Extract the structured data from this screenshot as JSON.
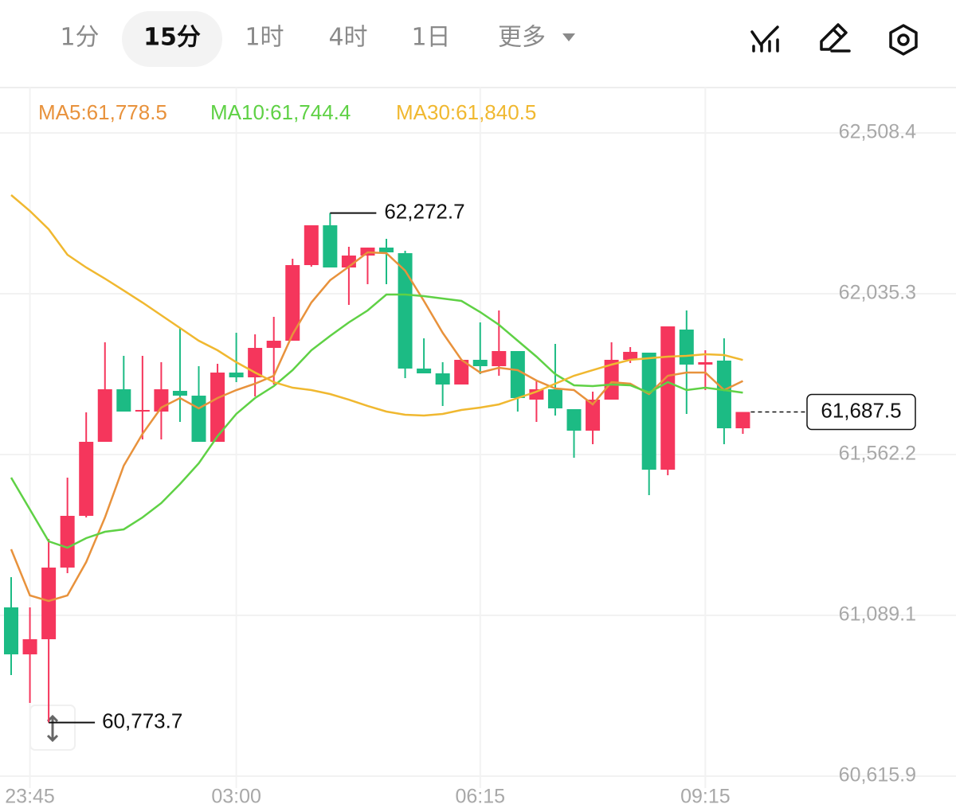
{
  "toolbar": {
    "tabs": [
      "1分",
      "15分",
      "1时",
      "4时",
      "1日",
      "更多"
    ],
    "active": 1
  },
  "chart_data": {
    "type": "candlestick",
    "categories": [
      null,
      "23:45",
      null,
      null,
      null,
      null,
      null,
      null,
      null,
      null,
      null,
      null,
      "03:00",
      null,
      null,
      null,
      null,
      null,
      null,
      null,
      null,
      null,
      null,
      null,
      null,
      "06:15",
      null,
      null,
      null,
      null,
      null,
      null,
      null,
      null,
      null,
      null,
      null,
      "09:15",
      null,
      null
    ],
    "open": [
      61112.6,
      60974.4,
      61018.9,
      61229.7,
      61381.9,
      61599.7,
      61754.3,
      61688.7,
      61688.7,
      61749.6,
      61735.5,
      61599.7,
      61803.4,
      61789.4,
      61876.0,
      61897.1,
      62119.6,
      62236.7,
      62112.6,
      62147.7,
      62171.1,
      62154.7,
      61815.2,
      61801.1,
      61768.3,
      61840.9,
      61822.2,
      61866.7,
      61723.8,
      61754.3,
      61695.7,
      61632.5,
      61723.8,
      61840.9,
      61862.0,
      61517.7,
      61929.9,
      61826.9,
      61838.6,
      61639.5
    ],
    "high": [
      61201.5,
      61112.6,
      61314.0,
      61494.3,
      61686.3,
      61892.4,
      61852.6,
      61852.6,
      61833.9,
      61934.6,
      61822.2,
      61829.2,
      61920.5,
      61915.9,
      61967.4,
      62138.3,
      62236.7,
      62272.7,
      62173.5,
      62171.1,
      62196.9,
      62161.8,
      61904.1,
      61833.9,
      61840.9,
      61951.0,
      61986.1,
      61866.7,
      61780.0,
      61887.8,
      61695.7,
      61747.2,
      61892.4,
      61878.4,
      61862.0,
      61939.3,
      61986.1,
      61869.0,
      61904.1,
      61687.5
    ],
    "low": [
      60913.5,
      60831.5,
      60773.7,
      61213.3,
      61377.2,
      61599.7,
      61688.7,
      61606.7,
      61606.7,
      61658.2,
      61599.7,
      61599.7,
      61775.3,
      61733.2,
      61768.3,
      61897.1,
      62114.9,
      62112.6,
      62002.5,
      62063.4,
      62063.4,
      61787.0,
      61801.1,
      61705.1,
      61768.3,
      61798.8,
      61794.1,
      61688.7,
      61658.2,
      61677.0,
      61552.8,
      61592.7,
      61723.8,
      61831.5,
      61442.8,
      61501.3,
      61681.7,
      61751.9,
      61592.7,
      61623.1
    ],
    "close": [
      60974.4,
      61018.9,
      61229.7,
      61381.9,
      61599.7,
      61754.3,
      61688.7,
      61693.4,
      61754.3,
      61735.5,
      61599.7,
      61803.4,
      61789.4,
      61876.0,
      61897.1,
      62119.6,
      62236.7,
      62112.6,
      62147.7,
      62171.1,
      62157.1,
      61815.2,
      61801.1,
      61768.3,
      61840.9,
      61822.2,
      61866.7,
      61728.5,
      61754.3,
      61698.1,
      61632.5,
      61723.8,
      61840.9,
      61864.3,
      61517.7,
      61939.3,
      61826.9,
      61833.9,
      61639.5,
      61687.5
    ],
    "up_color": "#f5365c",
    "down_color": "#1cbb84",
    "series": [
      {
        "name": "MA5:61,778.5",
        "color": "#e8923c",
        "values": [
          61283.5,
          61147.7,
          61131.3,
          61147.7,
          61246.0,
          61377.2,
          61529.4,
          61623.1,
          61700.4,
          61728.5,
          61698.1,
          61728.5,
          61751.9,
          61770.7,
          61794.1,
          61915.9,
          62009.5,
          62075.1,
          62114.9,
          62157.1,
          62154.7,
          62103.2,
          62014.2,
          61920.5,
          61840.9,
          61803.4,
          61817.5,
          61810.5,
          61780.0,
          61756.6,
          61751.9,
          61709.8,
          61775.3,
          61770.7,
          61740.2,
          61794.1,
          61803.4,
          61803.4,
          61751.9,
          61778.5
        ]
      },
      {
        "name": "MA10:61,744.4",
        "color": "#5fd145",
        "values": [
          61494.3,
          61400.6,
          61306.9,
          61288.2,
          61316.3,
          61335.0,
          61342.1,
          61377.2,
          61419.4,
          61475.6,
          61536.5,
          61616.1,
          61681.7,
          61728.5,
          61763.6,
          61810.5,
          61869.0,
          61911.2,
          61951.0,
          61986.1,
          62033.0,
          62033.0,
          62028.3,
          62021.3,
          62014.2,
          61981.4,
          61944.0,
          61897.1,
          61850.3,
          61798.8,
          61766.0,
          61763.6,
          61768.3,
          61766.0,
          61744.4,
          61775.3,
          61751.9,
          61758.9,
          61751.9,
          61744.4
        ]
      },
      {
        "name": "MA30:61,840.5",
        "color": "#f0b830",
        "values": [
          62325.7,
          62278.9,
          62225.0,
          62150.1,
          62112.6,
          62079.8,
          62044.7,
          62009.5,
          61972.1,
          61934.6,
          61897.1,
          61869.0,
          61833.9,
          61803.4,
          61775.3,
          61758.9,
          61751.9,
          61740.2,
          61723.8,
          61705.1,
          61688.7,
          61679.3,
          61677.0,
          61681.7,
          61693.4,
          61700.4,
          61709.8,
          61728.5,
          61747.2,
          61770.7,
          61794.1,
          61810.5,
          61826.9,
          61840.9,
          61845.6,
          61850.3,
          61852.6,
          61857.3,
          61855.0,
          61840.5
        ]
      }
    ],
    "ylim": [
      60580.9,
      62641.9
    ],
    "yticks": [
      {
        "value": 62508.4,
        "label": "62,508.4"
      },
      {
        "value": 62035.3,
        "label": "62,035.3"
      },
      {
        "value": 61562.2,
        "label": "61,562.2"
      },
      {
        "value": 61089.1,
        "label": "61,089.1"
      },
      {
        "value": 60615.9,
        "label": "60,615.9"
      }
    ],
    "grid": true,
    "high_label": "62,272.7",
    "low_label": "60,773.7",
    "last_label": "61,687.5"
  }
}
